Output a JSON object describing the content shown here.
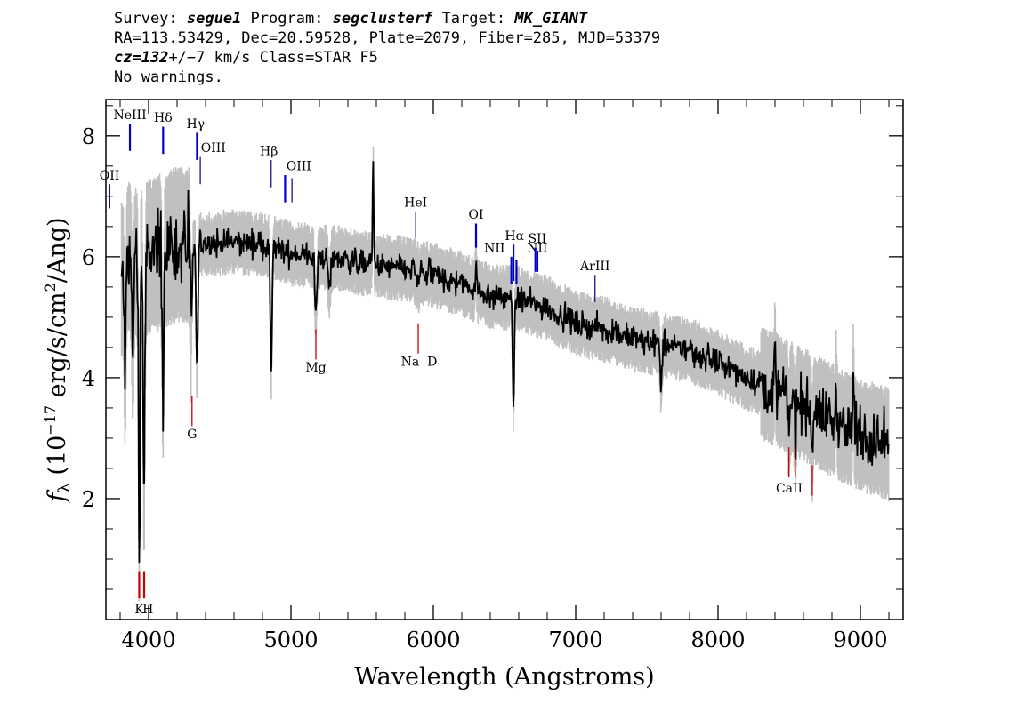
{
  "header": {
    "survey_label": "Survey: ",
    "survey": "segue1",
    "program_label": " Program: ",
    "program": "segclusterf",
    "target_label": " Target: ",
    "target": "MK_GIANT",
    "line2": "RA=113.53429, Dec=20.59528, Plate=2079, Fiber=285, MJD=53379",
    "cz_label": "cz=132",
    "cz_rest": "+/−7 km/s Class=STAR F5",
    "line4": "No warnings."
  },
  "chart_data": {
    "type": "line",
    "title": "",
    "xlabel": "Wavelength (Angstroms)",
    "ylabel_prefix": "f",
    "ylabel_sub": "λ",
    "ylabel_rest": " (10",
    "ylabel_exp": "−17",
    "ylabel_tail": " erg/s/cm",
    "ylabel_exp2": "2",
    "ylabel_end": "/Ang)",
    "xlim": [
      3700,
      9300
    ],
    "ylim": [
      0.0,
      8.6
    ],
    "x_ticks": [
      {
        "value": 4000,
        "label": "4000"
      },
      {
        "value": 5000,
        "label": "5000"
      },
      {
        "value": 6000,
        "label": "6000"
      },
      {
        "value": 7000,
        "label": "7000"
      },
      {
        "value": 8000,
        "label": "8000"
      },
      {
        "value": 9000,
        "label": "9000"
      }
    ],
    "y_ticks": [
      {
        "value": 2,
        "label": "2"
      },
      {
        "value": 4,
        "label": "4"
      },
      {
        "value": 6,
        "label": "6"
      },
      {
        "value": 8,
        "label": "8"
      }
    ],
    "series": [
      {
        "color": "#000000",
        "noise_color": "#c0c0c0",
        "continuum": [
          [
            3810,
            5.6
          ],
          [
            3850,
            6.0
          ],
          [
            3900,
            5.9
          ],
          [
            4000,
            6.0
          ],
          [
            4100,
            6.1
          ],
          [
            4200,
            6.2
          ],
          [
            4400,
            6.2
          ],
          [
            4600,
            6.25
          ],
          [
            4800,
            6.2
          ],
          [
            5000,
            6.05
          ],
          [
            5200,
            6.0
          ],
          [
            5400,
            5.95
          ],
          [
            5600,
            5.85
          ],
          [
            5800,
            5.8
          ],
          [
            6000,
            5.7
          ],
          [
            6200,
            5.55
          ],
          [
            6400,
            5.35
          ],
          [
            6600,
            5.3
          ],
          [
            6800,
            5.15
          ],
          [
            7000,
            4.9
          ],
          [
            7200,
            4.8
          ],
          [
            7400,
            4.65
          ],
          [
            7600,
            4.55
          ],
          [
            7800,
            4.45
          ],
          [
            8000,
            4.25
          ],
          [
            8200,
            4.0
          ],
          [
            8400,
            3.8
          ],
          [
            8600,
            3.55
          ],
          [
            8800,
            3.3
          ],
          [
            9000,
            3.05
          ],
          [
            9200,
            2.9
          ]
        ],
        "absorption": [
          [
            3835,
            1.8,
            6
          ],
          [
            3889,
            1.5,
            6
          ],
          [
            3934,
            4.8,
            5
          ],
          [
            3968,
            3.8,
            6
          ],
          [
            4101,
            2.3,
            6
          ],
          [
            4300,
            1.5,
            6
          ],
          [
            4340,
            2.2,
            6
          ],
          [
            4861,
            2.1,
            6
          ],
          [
            5175,
            0.9,
            8
          ],
          [
            5270,
            0.5,
            8
          ],
          [
            5890,
            0.45,
            8
          ],
          [
            6563,
            1.7,
            6
          ],
          [
            7600,
            0.7,
            6
          ],
          [
            8498,
            0.5,
            5
          ],
          [
            8542,
            0.6,
            5
          ],
          [
            8662,
            0.6,
            5
          ]
        ],
        "emission": [
          [
            5577,
            1.6,
            4
          ],
          [
            5890,
            0.5,
            4
          ],
          [
            6300,
            0.5,
            4
          ],
          [
            8400,
            0.6,
            4
          ],
          [
            8830,
            0.6,
            4
          ],
          [
            8950,
            0.9,
            4
          ]
        ]
      }
    ],
    "emission_lines": [
      {
        "label": "OII",
        "x": 3727,
        "y0": 6.8,
        "y1": 7.2,
        "ly": 7.28,
        "lx": 3725
      },
      {
        "label": "NeIII",
        "x": 3869,
        "y0": 7.75,
        "y1": 8.2,
        "ly": 8.28,
        "lx": 3869
      },
      {
        "label": "Hδ",
        "x": 4102,
        "y0": 7.7,
        "y1": 8.15,
        "ly": 8.23,
        "lx": 4102
      },
      {
        "label": "Hγ",
        "x": 4340,
        "y0": 7.6,
        "y1": 8.05,
        "ly": 8.13,
        "lx": 4330
      },
      {
        "label": "OIII",
        "x": 4363,
        "y0": 7.2,
        "y1": 7.65,
        "ly": 7.73,
        "lx": 4455
      },
      {
        "label": "Hβ",
        "x": 4861,
        "y0": 7.15,
        "y1": 7.6,
        "ly": 7.68,
        "lx": 4845
      },
      {
        "label": "OIII",
        "x": 4959,
        "y0": 6.9,
        "y1": 7.35,
        "ly": 7.43,
        "lx": 5055
      },
      {
        "label": "OIII",
        "x": 5007,
        "y0": 6.9,
        "y1": 7.3,
        "ly": null,
        "lx": null
      },
      {
        "label": "HeI",
        "x": 5876,
        "y0": 6.3,
        "y1": 6.75,
        "ly": 6.83,
        "lx": 5876
      },
      {
        "label": "OI",
        "x": 6300,
        "y0": 6.15,
        "y1": 6.55,
        "ly": 6.63,
        "lx": 6300
      },
      {
        "label": "NII",
        "x": 6548,
        "y0": 5.55,
        "y1": 6.0,
        "ly": 6.08,
        "lx": 6430
      },
      {
        "label": "Hα",
        "x": 6563,
        "y0": 5.6,
        "y1": 6.2,
        "ly": 6.28,
        "lx": 6570
      },
      {
        "label": "NII",
        "x": 6584,
        "y0": 5.55,
        "y1": 5.95,
        "ly": 6.08,
        "lx": 6730
      },
      {
        "label": "SII",
        "x": 6717,
        "y0": 5.75,
        "y1": 6.15,
        "ly": 6.23,
        "lx": 6730
      },
      {
        "label": "SII",
        "x": 6731,
        "y0": 5.75,
        "y1": 6.1,
        "ly": null,
        "lx": null
      },
      {
        "label": "ArIII",
        "x": 7136,
        "y0": 5.25,
        "y1": 5.7,
        "ly": 5.78,
        "lx": 7136
      }
    ],
    "absorption_lines": [
      {
        "label": "K",
        "x": 3934,
        "y0": 0.35,
        "y1": 0.8,
        "ly": 0.1,
        "lx": 3935
      },
      {
        "label": "H",
        "x": 3969,
        "y0": 0.35,
        "y1": 0.8,
        "ly": 0.1,
        "lx": 3995
      },
      {
        "label": "G",
        "x": 4305,
        "y0": 3.2,
        "y1": 3.7,
        "ly": 3.0,
        "lx": 4305
      },
      {
        "label": "Mg",
        "x": 5175,
        "y0": 4.3,
        "y1": 4.8,
        "ly": 4.1,
        "lx": 5175
      },
      {
        "label": "Na  D",
        "x": 5894,
        "y0": 4.4,
        "y1": 4.9,
        "ly": 4.2,
        "lx": 5900
      },
      {
        "label": "CaII",
        "x": 8498,
        "y0": 2.35,
        "y1": 2.85,
        "ly": 2.1,
        "lx": 8500
      },
      {
        "label": "CaII",
        "x": 8542,
        "y0": 2.35,
        "y1": 2.85,
        "ly": null,
        "lx": null
      },
      {
        "label": "CaII",
        "x": 8662,
        "y0": 2.05,
        "y1": 2.55,
        "ly": null,
        "lx": null
      }
    ],
    "line_colors": {
      "emission": "#0000cc",
      "emission_thin": "#000080",
      "absorption": "#cc0000"
    },
    "grid": false,
    "legend": "none"
  }
}
